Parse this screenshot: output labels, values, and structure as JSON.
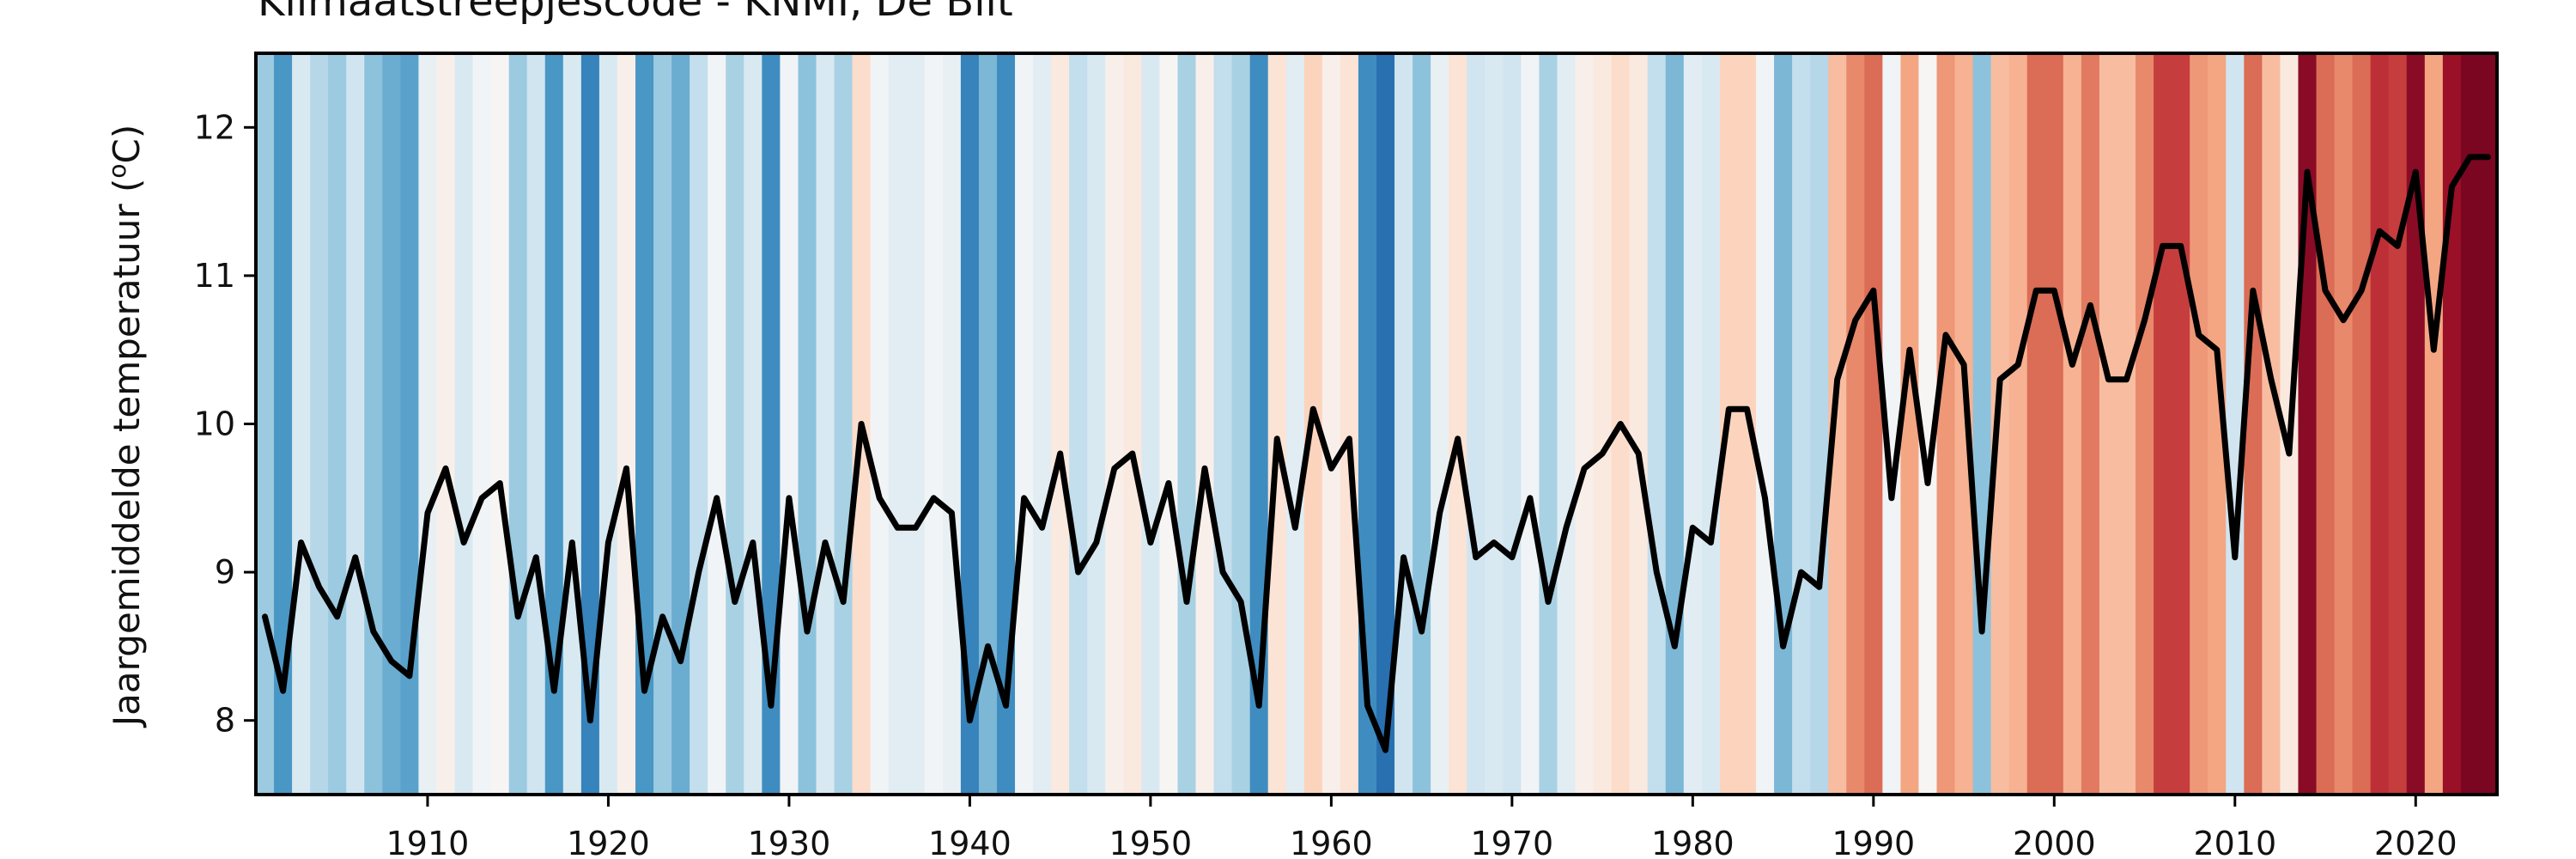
{
  "chart_data": {
    "type": "line",
    "title": "Klimaatstreepjescode - KNMI, De Bilt",
    "ylabel_main": "Jaargemiddelde temperatuur (",
    "ylabel_unit_super": "o",
    "ylabel_unit": "C)",
    "xlim": [
      1900.5,
      2024.5
    ],
    "ylim": [
      7.5,
      12.5
    ],
    "xticks": [
      1910,
      1920,
      1930,
      1940,
      1950,
      1960,
      1970,
      1980,
      1990,
      2000,
      2010,
      2020
    ],
    "yticks": [
      8,
      9,
      10,
      11,
      12
    ],
    "stripes_colormap": "RdBu_r",
    "line_color": "#000000",
    "x": [
      1901,
      1902,
      1903,
      1904,
      1905,
      1906,
      1907,
      1908,
      1909,
      1910,
      1911,
      1912,
      1913,
      1914,
      1915,
      1916,
      1917,
      1918,
      1919,
      1920,
      1921,
      1922,
      1923,
      1924,
      1925,
      1926,
      1927,
      1928,
      1929,
      1930,
      1931,
      1932,
      1933,
      1934,
      1935,
      1936,
      1937,
      1938,
      1939,
      1940,
      1941,
      1942,
      1943,
      1944,
      1945,
      1946,
      1947,
      1948,
      1949,
      1950,
      1951,
      1952,
      1953,
      1954,
      1955,
      1956,
      1957,
      1958,
      1959,
      1960,
      1961,
      1962,
      1963,
      1964,
      1965,
      1966,
      1967,
      1968,
      1969,
      1970,
      1971,
      1972,
      1973,
      1974,
      1975,
      1976,
      1977,
      1978,
      1979,
      1980,
      1981,
      1982,
      1983,
      1984,
      1985,
      1986,
      1987,
      1988,
      1989,
      1990,
      1991,
      1992,
      1993,
      1994,
      1995,
      1996,
      1997,
      1998,
      1999,
      2000,
      2001,
      2002,
      2003,
      2004,
      2005,
      2006,
      2007,
      2008,
      2009,
      2010,
      2011,
      2012,
      2013,
      2014,
      2015,
      2016,
      2017,
      2018,
      2019,
      2020,
      2021,
      2022,
      2023,
      2024
    ],
    "y": [
      8.7,
      8.2,
      9.2,
      8.9,
      8.7,
      9.1,
      8.6,
      8.4,
      8.3,
      9.4,
      9.7,
      9.2,
      9.5,
      9.6,
      8.7,
      9.1,
      8.2,
      9.2,
      8.0,
      9.2,
      9.7,
      8.2,
      8.7,
      8.4,
      9.0,
      9.5,
      8.8,
      9.2,
      8.1,
      9.5,
      8.6,
      9.2,
      8.8,
      10.0,
      9.5,
      9.3,
      9.3,
      9.5,
      9.4,
      8.0,
      8.5,
      8.1,
      9.5,
      9.3,
      9.8,
      9.0,
      9.2,
      9.7,
      9.8,
      9.2,
      9.6,
      8.8,
      9.7,
      9.0,
      8.8,
      8.1,
      9.9,
      9.3,
      10.1,
      9.7,
      9.9,
      8.1,
      7.8,
      9.1,
      8.6,
      9.4,
      9.9,
      9.1,
      9.2,
      9.1,
      9.5,
      8.8,
      9.3,
      9.7,
      9.8,
      10.0,
      9.8,
      9.0,
      8.5,
      9.3,
      9.2,
      10.1,
      10.1,
      9.5,
      8.5,
      9.0,
      8.9,
      10.3,
      10.7,
      10.9,
      9.5,
      10.5,
      9.6,
      10.6,
      10.4,
      8.6,
      10.3,
      10.4,
      10.9,
      10.9,
      10.4,
      10.8,
      10.3,
      10.3,
      10.7,
      11.2,
      11.2,
      10.6,
      10.5,
      9.1,
      10.9,
      10.3,
      9.8,
      11.7,
      10.9,
      10.7,
      10.9,
      11.3,
      11.2,
      11.7,
      10.5,
      11.6,
      11.8,
      11.8
    ]
  }
}
